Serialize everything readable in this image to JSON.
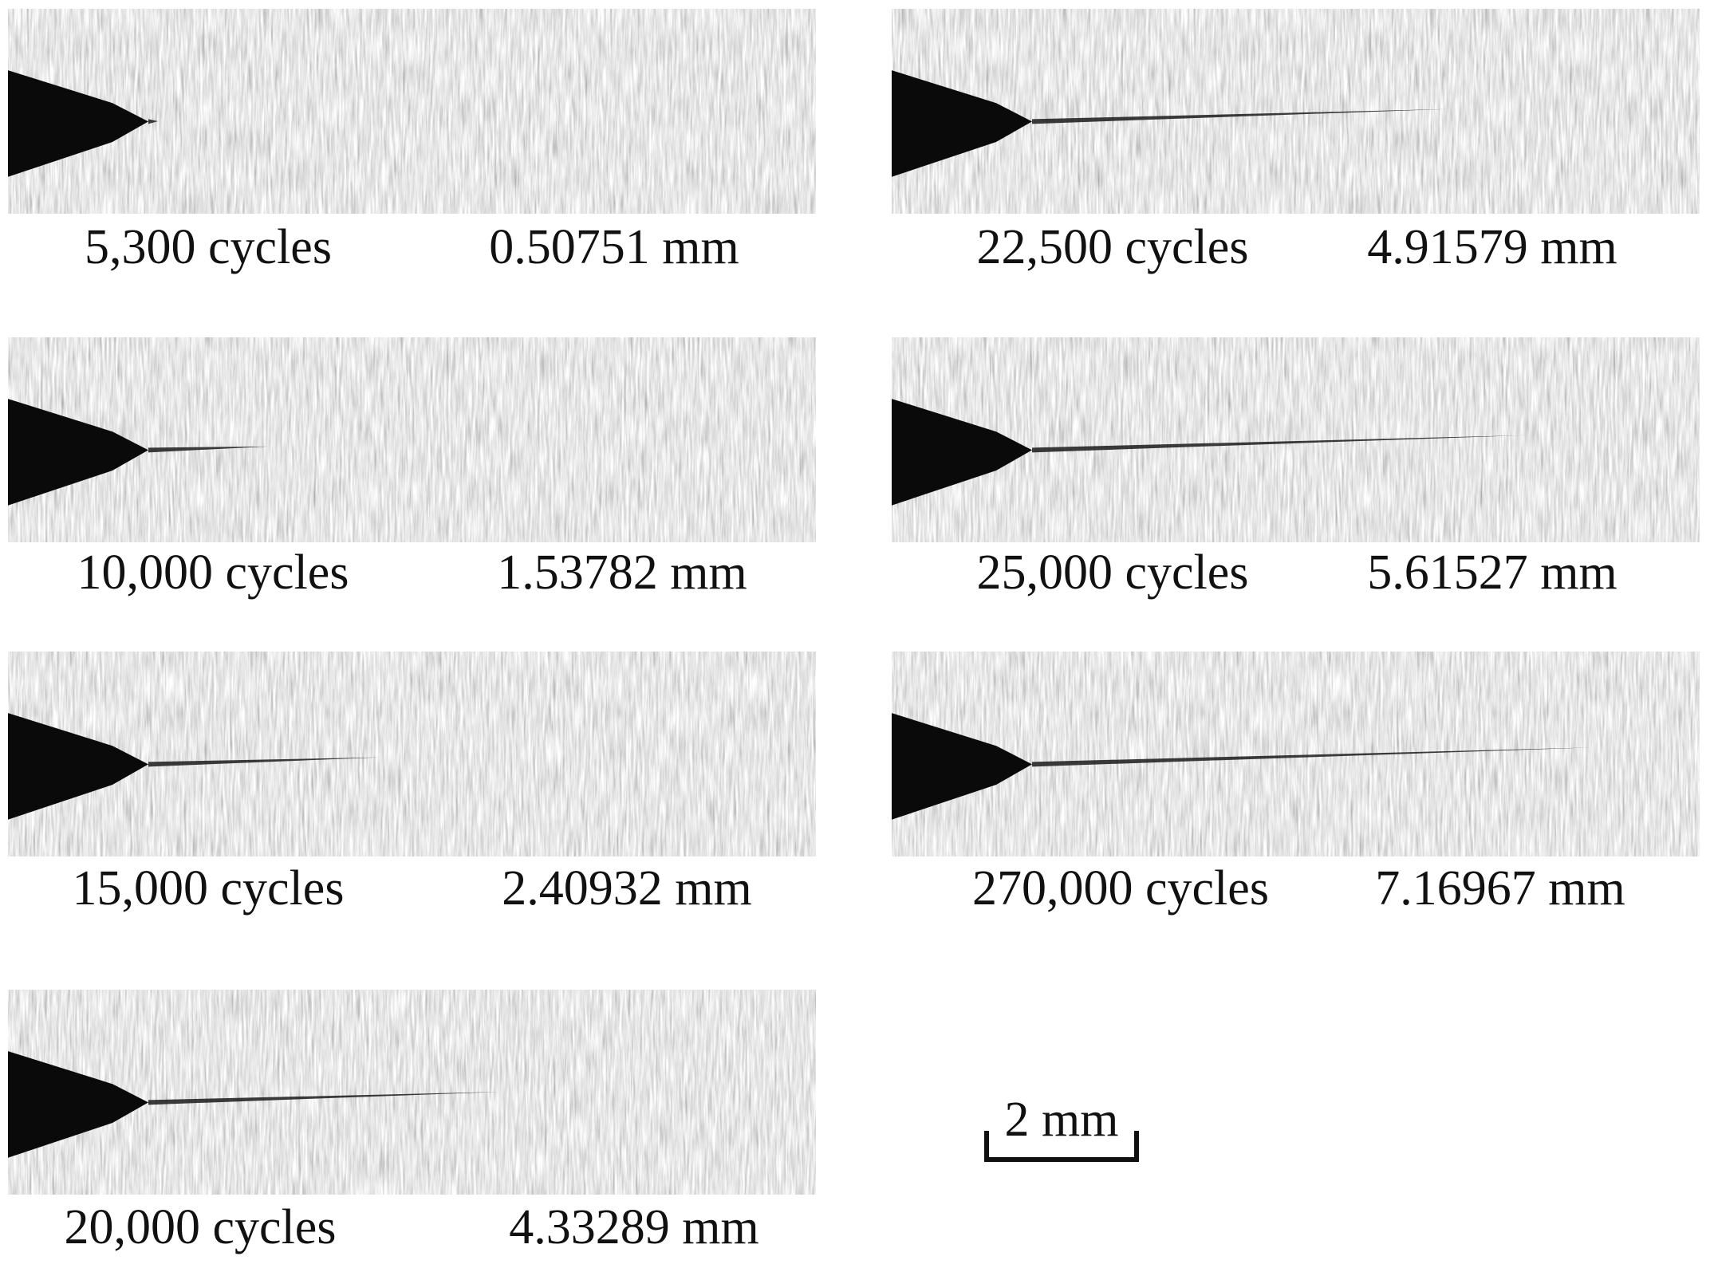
{
  "panels": [
    {
      "cycles": "5,300 cycles",
      "crack_length": "0.50751 mm"
    },
    {
      "cycles": "10,000 cycles",
      "crack_length": "1.53782 mm"
    },
    {
      "cycles": "15,000 cycles",
      "crack_length": "2.40932 mm"
    },
    {
      "cycles": "20,000 cycles",
      "crack_length": "4.33289 mm"
    },
    {
      "cycles": "22,500 cycles",
      "crack_length": "4.91579 mm"
    },
    {
      "cycles": "25,000 cycles",
      "crack_length": "5.61527 mm"
    },
    {
      "cycles": "270,000 cycles",
      "crack_length": "7.16967 mm"
    }
  ],
  "scale_bar": {
    "label": "2 mm"
  }
}
